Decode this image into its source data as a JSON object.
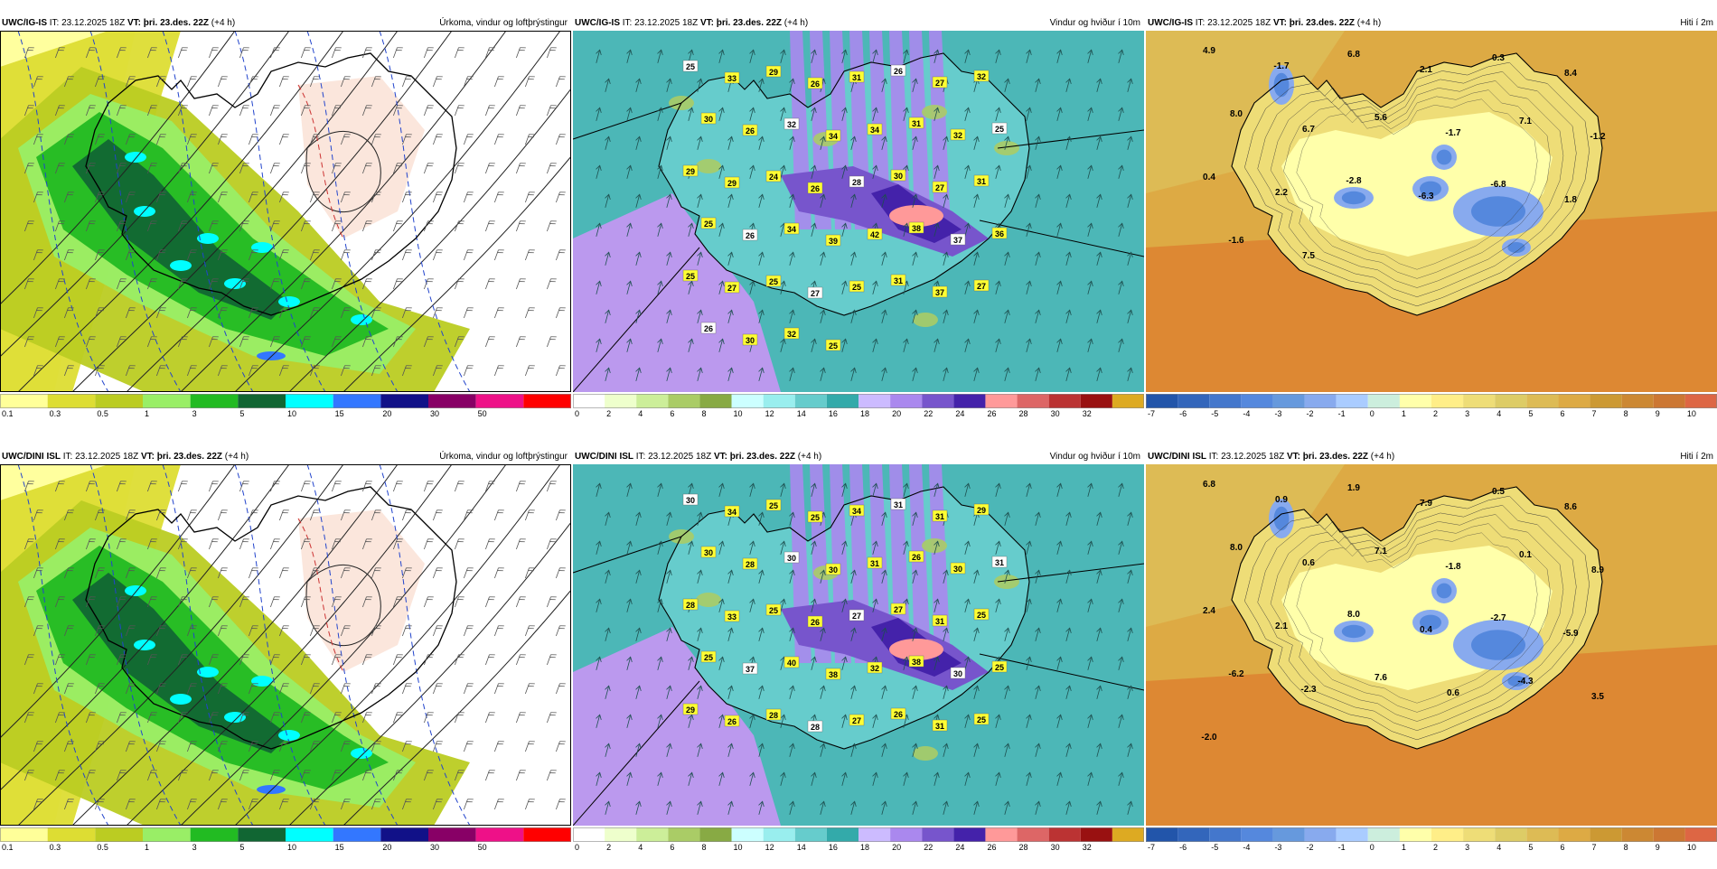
{
  "panels": [
    {
      "model": "UWC/IG-IS",
      "it_label": "IT:",
      "it": "23.12.2025 18Z",
      "vt_label": "VT:",
      "vt": "þri. 23.des. 22Z",
      "lead": "(+4 h)",
      "title": "Úrkoma, vindur og loftþrýstingur",
      "type": "precip",
      "scale_colors": [
        "#ffff99",
        "#dddd33",
        "#bbcc22",
        "#99ee66",
        "#22bb22",
        "#116633",
        "#00ffff",
        "#3377ff",
        "#111188",
        "#880066",
        "#ee1188",
        "#ff0000"
      ],
      "scale_ticks": [
        "0.1",
        "0.3",
        "0.5",
        "1",
        "3",
        "5",
        "10",
        "15",
        "20",
        "30",
        "50"
      ]
    },
    {
      "model": "UWC/IG-IS",
      "it_label": "IT:",
      "it": "23.12.2025 18Z",
      "vt_label": "VT:",
      "vt": "þri. 23.des. 22Z",
      "lead": "(+4 h)",
      "title": "Vindur og hviður í 10m",
      "type": "wind",
      "values": [
        "25",
        "33",
        "29",
        "26",
        "31",
        "26",
        "27",
        "32",
        "30",
        "26",
        "32",
        "34",
        "34",
        "31",
        "32",
        "25",
        "29",
        "29",
        "24",
        "26",
        "28",
        "30",
        "27",
        "31",
        "25",
        "26",
        "34",
        "39",
        "42",
        "38",
        "37",
        "36",
        "25",
        "27",
        "25",
        "27",
        "25",
        "31",
        "37",
        "27",
        "26",
        "30",
        "32",
        "25"
      ],
      "scale_colors": [
        "#ffffff",
        "#eeffcc",
        "#ccee99",
        "#aacc66",
        "#88aa44",
        "#ccffff",
        "#99eeee",
        "#66cccc",
        "#33aaaa",
        "#ccbbff",
        "#aa88ee",
        "#7755cc",
        "#4422aa",
        "#ff9999",
        "#dd6666",
        "#bb3333",
        "#991111",
        "#ddaa22"
      ],
      "scale_ticks": [
        "0",
        "2",
        "4",
        "6",
        "8",
        "10",
        "12",
        "14",
        "16",
        "18",
        "20",
        "22",
        "24",
        "26",
        "28",
        "30",
        "32"
      ]
    },
    {
      "model": "UWC/IG-IS",
      "it_label": "IT:",
      "it": "23.12.2025 18Z",
      "vt_label": "VT:",
      "vt": "þri. 23.des. 22Z",
      "lead": "(+4 h)",
      "title": "Hiti í 2m",
      "type": "temp",
      "values": [
        "4.9",
        "-1.7",
        "6.8",
        "2.1",
        "0.3",
        "8.4",
        "8.0",
        "6.7",
        "5.6",
        "-1.7",
        "7.1",
        "-1.2",
        "0.4",
        "2.2",
        "-2.8",
        "-6.3",
        "-6.8",
        "1.8",
        "-1.6",
        "7.5"
      ],
      "scale_colors": [
        "#2255aa",
        "#3366bb",
        "#4477cc",
        "#5588dd",
        "#6699dd",
        "#88aaee",
        "#aaccff",
        "#cceedd",
        "#ffffaa",
        "#ffee88",
        "#eedd77",
        "#ddcc66",
        "#ddbb55",
        "#ddaa44",
        "#cc9933",
        "#cc8833",
        "#cc7733",
        "#dd6644"
      ],
      "scale_ticks": [
        "-7",
        "-6",
        "-5",
        "-4",
        "-3",
        "-2",
        "-1",
        "0",
        "1",
        "2",
        "3",
        "4",
        "5",
        "6",
        "7",
        "8",
        "9",
        "10"
      ]
    },
    {
      "model": "UWC/DINI ISL",
      "it_label": "IT:",
      "it": "23.12.2025 18Z",
      "vt_label": "VT:",
      "vt": "þri. 23.des. 22Z",
      "lead": "(+4 h)",
      "title": "Úrkoma, vindur og loftþrýstingur",
      "type": "precip",
      "scale_colors": [
        "#ffff99",
        "#dddd33",
        "#bbcc22",
        "#99ee66",
        "#22bb22",
        "#116633",
        "#00ffff",
        "#3377ff",
        "#111188",
        "#880066",
        "#ee1188",
        "#ff0000"
      ],
      "scale_ticks": [
        "0.1",
        "0.3",
        "0.5",
        "1",
        "3",
        "5",
        "10",
        "15",
        "20",
        "30",
        "50"
      ]
    },
    {
      "model": "UWC/DINI ISL",
      "it_label": "IT:",
      "it": "23.12.2025 18Z",
      "vt_label": "VT:",
      "vt": "þri. 23.des. 22Z",
      "lead": "(+4 h)",
      "title": "Vindur og hviður í 10m",
      "type": "wind",
      "values": [
        "30",
        "34",
        "25",
        "25",
        "34",
        "31",
        "31",
        "29",
        "30",
        "28",
        "30",
        "30",
        "31",
        "26",
        "30",
        "31",
        "28",
        "33",
        "25",
        "26",
        "27",
        "27",
        "31",
        "25",
        "25",
        "37",
        "40",
        "38",
        "32",
        "38",
        "30",
        "25",
        "29",
        "26",
        "28",
        "28",
        "27",
        "26",
        "31",
        "25"
      ],
      "scale_colors": [
        "#ffffff",
        "#eeffcc",
        "#ccee99",
        "#aacc66",
        "#88aa44",
        "#ccffff",
        "#99eeee",
        "#66cccc",
        "#33aaaa",
        "#ccbbff",
        "#aa88ee",
        "#7755cc",
        "#4422aa",
        "#ff9999",
        "#dd6666",
        "#bb3333",
        "#991111",
        "#ddaa22"
      ],
      "scale_ticks": [
        "0",
        "2",
        "4",
        "6",
        "8",
        "10",
        "12",
        "14",
        "16",
        "18",
        "20",
        "22",
        "24",
        "26",
        "28",
        "30",
        "32"
      ]
    },
    {
      "model": "UWC/DINI ISL",
      "it_label": "IT:",
      "it": "23.12.2025 18Z",
      "vt_label": "VT:",
      "vt": "þri. 23.des. 22Z",
      "lead": "(+4 h)",
      "title": "Hiti í 2m",
      "type": "temp",
      "values": [
        "6.8",
        "0.9",
        "1.9",
        "7.9",
        "0.5",
        "8.6",
        "8.0",
        "0.6",
        "7.1",
        "-1.8",
        "0.1",
        "8.9",
        "2.4",
        "2.1",
        "8.0",
        "0.4",
        "-2.7",
        "-5.9",
        "-6.2",
        "-2.3",
        "7.6",
        "0.6",
        "-4.3",
        "3.5",
        "-2.0"
      ],
      "scale_colors": [
        "#2255aa",
        "#3366bb",
        "#4477cc",
        "#5588dd",
        "#6699dd",
        "#88aaee",
        "#aaccff",
        "#cceedd",
        "#ffffaa",
        "#ffee88",
        "#eedd77",
        "#ddcc66",
        "#ddbb55",
        "#ddaa44",
        "#cc9933",
        "#cc8833",
        "#cc7733",
        "#dd6644"
      ],
      "scale_ticks": [
        "-7",
        "-6",
        "-5",
        "-4",
        "-3",
        "-2",
        "-1",
        "0",
        "1",
        "2",
        "3",
        "4",
        "5",
        "6",
        "7",
        "8",
        "9",
        "10"
      ]
    }
  ]
}
